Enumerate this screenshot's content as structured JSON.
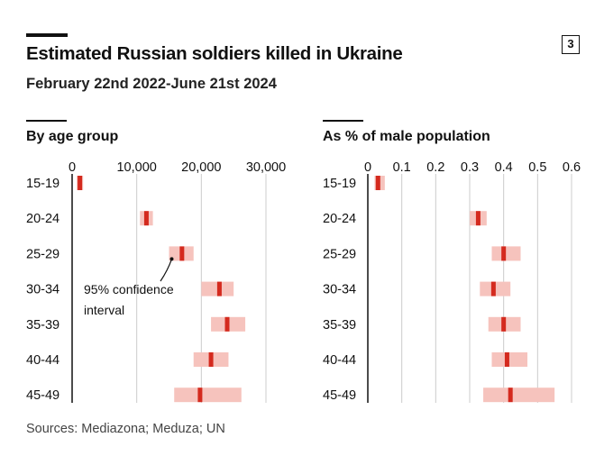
{
  "header": {
    "title": "Estimated Russian soldiers killed in Ukraine",
    "subtitle": "February 22nd 2022-June 21st 2024",
    "badge": "3"
  },
  "footer": {
    "source": "Sources: Mediazona; Meduza; UN"
  },
  "colors": {
    "interval": "#f6c3bd",
    "estimate": "#d42a1e",
    "axis": "#111111",
    "grid": "#cccccc"
  },
  "annotation": {
    "line1": "95% confidence",
    "line2": "interval"
  },
  "chart_data": [
    {
      "type": "range",
      "title": "By age group",
      "categories": [
        "15-19",
        "20-24",
        "25-29",
        "30-34",
        "35-39",
        "40-44",
        "45-49"
      ],
      "xlim": [
        0,
        30000
      ],
      "x_ticks": [
        0,
        10000,
        20000,
        30000
      ],
      "x_tick_labels": [
        "0",
        "10,000",
        "20,000",
        "30,000"
      ],
      "grid": true,
      "series": [
        {
          "estimate": [
            1200,
            11500,
            17000,
            22800,
            24000,
            21500,
            19800
          ],
          "low": [
            700,
            10500,
            15000,
            20000,
            21500,
            18800,
            15800
          ],
          "high": [
            1700,
            12500,
            18800,
            25000,
            26800,
            24200,
            26200
          ]
        }
      ]
    },
    {
      "type": "range",
      "title": "As % of male population",
      "categories": [
        "15-19",
        "20-24",
        "25-29",
        "30-34",
        "35-39",
        "40-44",
        "45-49"
      ],
      "xlim": [
        0,
        0.6
      ],
      "x_ticks": [
        0,
        0.1,
        0.2,
        0.3,
        0.4,
        0.5,
        0.6
      ],
      "x_tick_labels": [
        "0",
        "0.1",
        "0.2",
        "0.3",
        "0.4",
        "0.5",
        "0.6"
      ],
      "grid": true,
      "series": [
        {
          "estimate": [
            0.03,
            0.325,
            0.4,
            0.37,
            0.4,
            0.41,
            0.42
          ],
          "low": [
            0.02,
            0.3,
            0.365,
            0.33,
            0.355,
            0.365,
            0.34
          ],
          "high": [
            0.05,
            0.35,
            0.45,
            0.42,
            0.45,
            0.47,
            0.55
          ]
        }
      ]
    }
  ]
}
